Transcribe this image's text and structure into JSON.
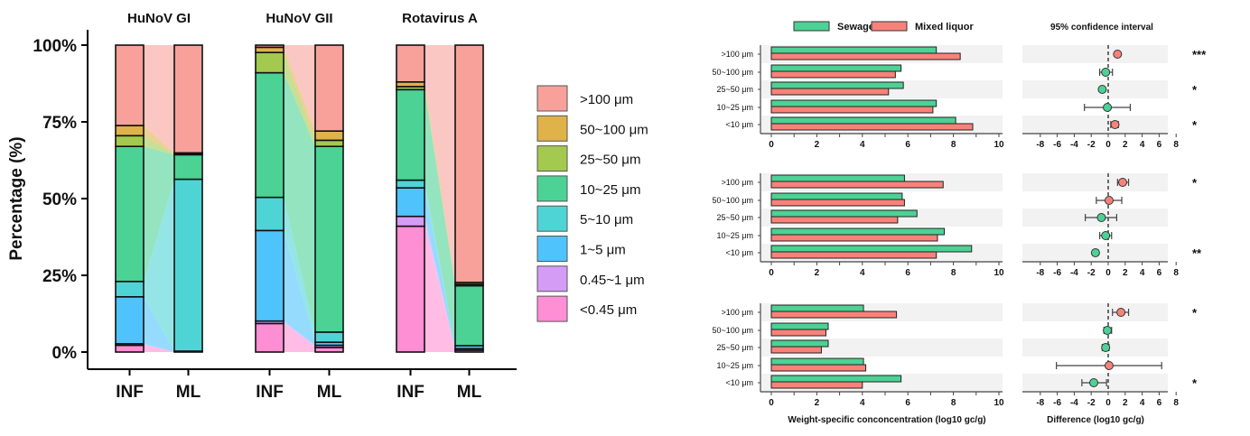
{
  "chart_data": [
    {
      "type": "bar",
      "stacked": true,
      "ylabel": "Percentage (%)",
      "ylim": [
        0,
        100
      ],
      "yticks": [
        "0%",
        "25%",
        "50%",
        "75%",
        "100%"
      ],
      "legend_position": "right",
      "size_classes": [
        "<0.45 μm",
        "0.45~1 μm",
        "1~5 μm",
        "5~10 μm",
        "10~25 μm",
        "25~50 μm",
        "50~100 μm",
        ">100 μm"
      ],
      "legend_order": [
        ">100 μm",
        "50~100 μm",
        "25~50 μm",
        "10~25 μm",
        "5~10 μm",
        "1~5 μm",
        "0.45~1 μm",
        "<0.45 μm"
      ],
      "colors": [
        "#ff8fd4",
        "#d59cf6",
        "#4fc3fb",
        "#4fd4d6",
        "#4cd294",
        "#a3c94f",
        "#dfb24a",
        "#f8a19b"
      ],
      "panels": [
        {
          "title": "HuNoV GI",
          "categories": [
            "INF",
            "ML"
          ],
          "values": [
            [
              2.2,
              0.5,
              15.3,
              5.0,
              44.0,
              3.5,
              3.3,
              26.2
            ],
            [
              0.2,
              0.0,
              0.1,
              56.0,
              8.0,
              0.3,
              0.3,
              35.1
            ]
          ]
        },
        {
          "title": "HuNoV GII",
          "categories": [
            "INF",
            "ML"
          ],
          "values": [
            [
              9.3,
              0.8,
              29.5,
              10.8,
              40.6,
              6.6,
              1.7,
              0.7
            ],
            [
              1.5,
              0.7,
              1.0,
              3.3,
              60.5,
              2.0,
              3.0,
              28.0
            ]
          ]
        },
        {
          "title": "Rotavirus A",
          "categories": [
            "INF",
            "ML"
          ],
          "values": [
            [
              41.0,
              3.2,
              9.3,
              2.5,
              29.5,
              1.0,
              1.5,
              12.0
            ],
            [
              0.6,
              0.5,
              1.0,
              0.0,
              19.5,
              0.5,
              0.6,
              77.3
            ]
          ]
        }
      ]
    },
    {
      "type": "bar",
      "orientation": "horizontal",
      "xlabel": "Weight-specific conconcentration (log10 gc/g)",
      "xlim": [
        0,
        10
      ],
      "xticks": [
        "0",
        "2",
        "4",
        "6",
        "8",
        "10"
      ],
      "categories": [
        ">100 μm",
        "50~100 μm",
        "25~50 μm",
        "10~25 μm",
        "<10 μm"
      ],
      "legend_position": "top",
      "series_names": [
        "Sewage",
        "Mixed liquor"
      ],
      "colors": {
        "Sewage": "#4cd294",
        "Mixed liquor": "#f8827a"
      },
      "panels": [
        {
          "Sewage": [
            7.25,
            5.7,
            5.8,
            7.25,
            8.1
          ],
          "Mixed liquor": [
            8.3,
            5.45,
            5.15,
            7.1,
            8.85
          ]
        },
        {
          "Sewage": [
            5.85,
            5.75,
            6.4,
            7.6,
            8.8
          ],
          "Mixed liquor": [
            7.55,
            5.85,
            5.55,
            7.3,
            7.25
          ]
        },
        {
          "Sewage": [
            4.05,
            2.5,
            2.5,
            4.05,
            5.7
          ],
          "Mixed liquor": [
            5.5,
            2.4,
            2.2,
            4.15,
            4.0
          ]
        }
      ]
    },
    {
      "type": "scatter",
      "title": "95% confidence interval",
      "xlabel": "Difference (log10 gc/g)",
      "xlim": [
        -9,
        9
      ],
      "xticks": [
        "-8",
        "-6",
        "-4",
        "-2",
        "0",
        "2",
        "4",
        "6",
        "8"
      ],
      "categories": [
        ">100 μm",
        "50~100 μm",
        "25~50 μm",
        "10~25 μm",
        "<10 μm"
      ],
      "panels": [
        {
          "diff": [
            1.1,
            -0.3,
            -0.7,
            -0.1,
            0.8
          ],
          "lo": [
            0.9,
            -1.0,
            -0.8,
            -2.8,
            0.3
          ],
          "hi": [
            1.3,
            0.5,
            -0.6,
            2.6,
            1.2
          ],
          "significance": [
            "***",
            "",
            "*",
            "",
            "*"
          ]
        },
        {
          "diff": [
            1.7,
            0.1,
            -0.8,
            -0.3,
            -1.5
          ],
          "lo": [
            1.1,
            -1.4,
            -2.7,
            -1.0,
            -1.8
          ],
          "hi": [
            2.4,
            1.6,
            1.0,
            0.4,
            -1.2
          ],
          "significance": [
            "*",
            "",
            "",
            "",
            "**"
          ]
        },
        {
          "diff": [
            1.5,
            -0.1,
            -0.3,
            0.1,
            -1.7
          ],
          "lo": [
            0.5,
            -0.5,
            -0.7,
            -6.1,
            -3.1
          ],
          "hi": [
            2.4,
            0.4,
            0.1,
            6.3,
            -0.2
          ],
          "significance": [
            "*",
            "",
            "",
            "",
            "*"
          ]
        }
      ]
    }
  ]
}
